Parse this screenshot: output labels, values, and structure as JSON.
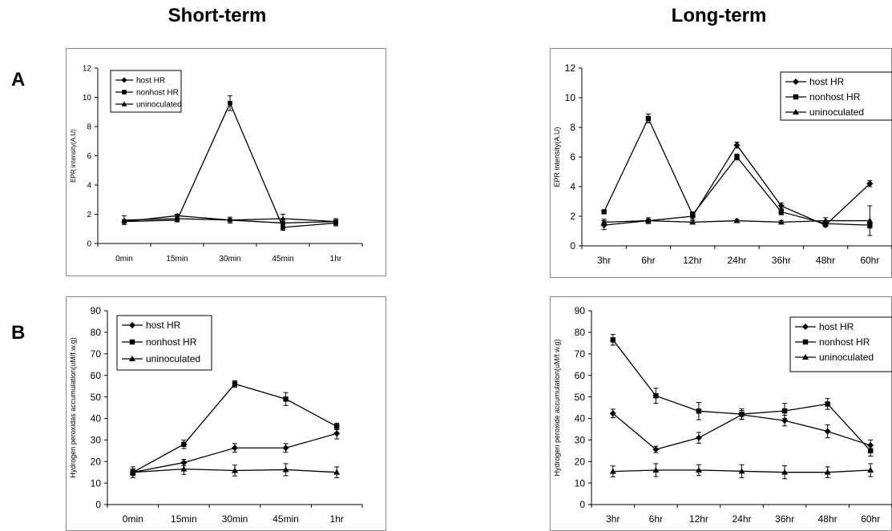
{
  "titles": {
    "short": "Short-term",
    "long": "Long-term"
  },
  "row_labels": {
    "a": "A",
    "b": "B"
  },
  "legend_markers": [
    "diamond",
    "square",
    "triangle"
  ],
  "chart_data": [
    {
      "id": "short-epr",
      "type": "line",
      "categories": [
        "0min",
        "15min",
        "30min",
        "45min",
        "1hr"
      ],
      "ylabel": "EPR intensity(A.U)",
      "ylim": [
        0,
        12
      ],
      "yticks": [
        0,
        2,
        4,
        6,
        8,
        10,
        12
      ],
      "legend": "top-left",
      "grid": false,
      "series": [
        {
          "name": "host HR",
          "values": [
            1.5,
            1.9,
            1.6,
            1.4,
            1.5
          ],
          "errors": [
            0.1,
            0.1,
            0.1,
            0.1,
            0.1
          ]
        },
        {
          "name": "nonhost HR",
          "values": [
            1.5,
            1.6,
            9.6,
            1.1,
            1.4
          ],
          "errors": [
            0.1,
            0.1,
            0.5,
            0.2,
            0.2
          ]
        },
        {
          "name": "uninoculated",
          "values": [
            1.6,
            1.7,
            1.6,
            1.7,
            1.5
          ],
          "errors": [
            0.3,
            0.2,
            0.2,
            0.3,
            0.2
          ]
        }
      ]
    },
    {
      "id": "long-epr",
      "type": "line",
      "categories": [
        "3hr",
        "6hr",
        "12hr",
        "24hr",
        "36hr",
        "48hr",
        "60hr"
      ],
      "ylabel": "EPR intensity(A.U)",
      "ylim": [
        0,
        12
      ],
      "yticks": [
        0,
        2,
        4,
        6,
        8,
        10,
        12
      ],
      "legend": "top-right",
      "grid": false,
      "series": [
        {
          "name": "host HR",
          "values": [
            1.4,
            1.7,
            2.0,
            6.8,
            2.7,
            1.4,
            4.2
          ],
          "errors": [
            0.3,
            0.1,
            0.2,
            0.2,
            0.2,
            0.1,
            0.2
          ]
        },
        {
          "name": "nonhost HR",
          "values": [
            2.3,
            8.6,
            2.1,
            6.0,
            2.3,
            1.5,
            1.4
          ],
          "errors": [
            0.1,
            0.3,
            0.2,
            0.2,
            0.2,
            0.2,
            0.2
          ]
        },
        {
          "name": "uninoculated",
          "values": [
            1.6,
            1.7,
            1.6,
            1.7,
            1.6,
            1.7,
            1.7
          ],
          "errors": [
            0.2,
            0.2,
            0.1,
            0.1,
            0.1,
            0.2,
            1.0
          ]
        }
      ]
    },
    {
      "id": "short-h2o2",
      "type": "line",
      "categories": [
        "0min",
        "15min",
        "30min",
        "45min",
        "1hr"
      ],
      "ylabel": "Hydrogen peroxidas accumulation(uM/f.w.g)",
      "ylim": [
        0,
        90
      ],
      "yticks": [
        0,
        10,
        20,
        30,
        40,
        50,
        60,
        70,
        80,
        90
      ],
      "legend": "top-left",
      "grid": false,
      "series": [
        {
          "name": "host HR",
          "values": [
            15,
            19.5,
            26.3,
            26.3,
            33
          ],
          "errors": [
            1.5,
            1.5,
            2,
            2,
            2.5
          ]
        },
        {
          "name": "nonhost HR",
          "values": [
            15,
            28,
            56,
            49,
            36.3
          ],
          "errors": [
            1.5,
            2,
            1.5,
            3,
            1.5
          ]
        },
        {
          "name": "uninoculated",
          "values": [
            15,
            16.5,
            15.8,
            16.2,
            15
          ],
          "errors": [
            2.5,
            2.5,
            2.5,
            2.8,
            2.5
          ]
        }
      ]
    },
    {
      "id": "long-h2o2",
      "type": "line",
      "categories": [
        "3hr",
        "6hr",
        "12hr",
        "24hr",
        "36hr",
        "48hr",
        "60hr"
      ],
      "ylabel": "Hydrogen peroxide accumulation(uM/f.w.g)",
      "ylim": [
        0,
        90
      ],
      "yticks": [
        0,
        10,
        20,
        30,
        40,
        50,
        60,
        70,
        80,
        90
      ],
      "legend": "top-right",
      "grid": false,
      "series": [
        {
          "name": "host HR",
          "values": [
            42.3,
            25.6,
            31,
            41.7,
            39,
            34,
            27.5
          ],
          "errors": [
            2,
            1.5,
            2.5,
            2,
            2.5,
            3,
            2.5
          ]
        },
        {
          "name": "nonhost HR",
          "values": [
            76.5,
            50.5,
            43.4,
            42,
            43.5,
            46.7,
            25
          ],
          "errors": [
            2.5,
            3.5,
            4,
            2.5,
            3.5,
            2.5,
            2.5
          ]
        },
        {
          "name": "uninoculated",
          "values": [
            15.4,
            16,
            16,
            15.5,
            15,
            15,
            16
          ],
          "errors": [
            2.5,
            3,
            2.5,
            3,
            3,
            2.5,
            3
          ]
        }
      ]
    }
  ]
}
